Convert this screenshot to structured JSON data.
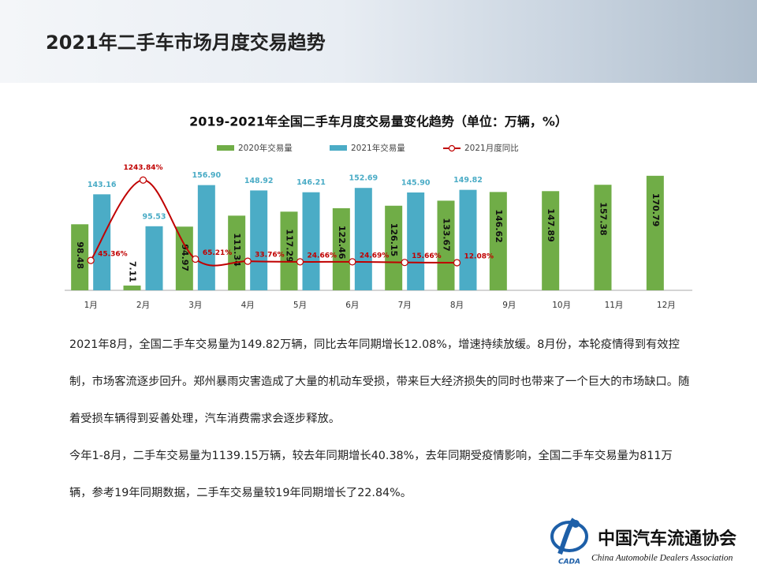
{
  "header": {
    "title": "2021年二手车市场月度交易趋势"
  },
  "chart_data": {
    "type": "bar_line",
    "title": "2019-2021年全国二手车月度交易量变化趋势（单位：万辆，%）",
    "categories": [
      "1月",
      "2月",
      "3月",
      "4月",
      "5月",
      "6月",
      "7月",
      "8月",
      "9月",
      "10月",
      "11月",
      "12月"
    ],
    "ylim": [
      0,
      180
    ],
    "y2lim": [
      -400,
      1400
    ],
    "series": [
      {
        "name": "2020年交易量",
        "type": "bar",
        "color": "#70ad47",
        "values": [
          98.48,
          7.11,
          94.97,
          111.34,
          117.29,
          122.46,
          126.15,
          133.67,
          146.62,
          147.89,
          157.38,
          170.79
        ]
      },
      {
        "name": "2021年交易量",
        "type": "bar",
        "color": "#4bacc6",
        "values": [
          143.16,
          95.53,
          156.9,
          148.92,
          146.21,
          152.69,
          145.9,
          149.82,
          null,
          null,
          null,
          null
        ],
        "value_labels": [
          "143.16",
          "95.53",
          "156.90",
          "148.92",
          "146.21",
          "152.69",
          "145.90",
          "149.82",
          null,
          null,
          null,
          null
        ]
      },
      {
        "name": "2021月度同比",
        "type": "line",
        "color": "#c00000",
        "axis": "y2",
        "values": [
          45.36,
          1243.84,
          65.21,
          33.76,
          24.66,
          24.69,
          15.66,
          12.08,
          null,
          null,
          null,
          null
        ],
        "value_labels": [
          "45.36%",
          "1243.84%",
          "65.21%",
          "33.76%",
          "24.66%",
          "24.69%",
          "15.66%",
          "12.08%",
          null,
          null,
          null,
          null
        ]
      }
    ]
  },
  "paragraphs": [
    "2021年8月，全国二手车交易量为149.82万辆，同比去年同期增长12.08%，增速持续放缓。8月份，本轮疫情得到有效控制，市场客流逐步回升。郑州暴雨灾害造成了大量的机动车受损，带来巨大经济损失的同时也带来了一个巨大的市场缺口。随着受损车辆得到妥善处理，汽车消费需求会逐步释放。",
    "今年1-8月，二手车交易量为1139.15万辆，较去年同期增长40.38%，去年同期受疫情影响，全国二手车交易量为811万辆，参考19年同期数据，二手车交易量较19年同期增长了22.84%。"
  ],
  "logo": {
    "name": "中国汽车流通协会",
    "english": "China Automobile Dealers Association",
    "abbr": "CADA"
  }
}
